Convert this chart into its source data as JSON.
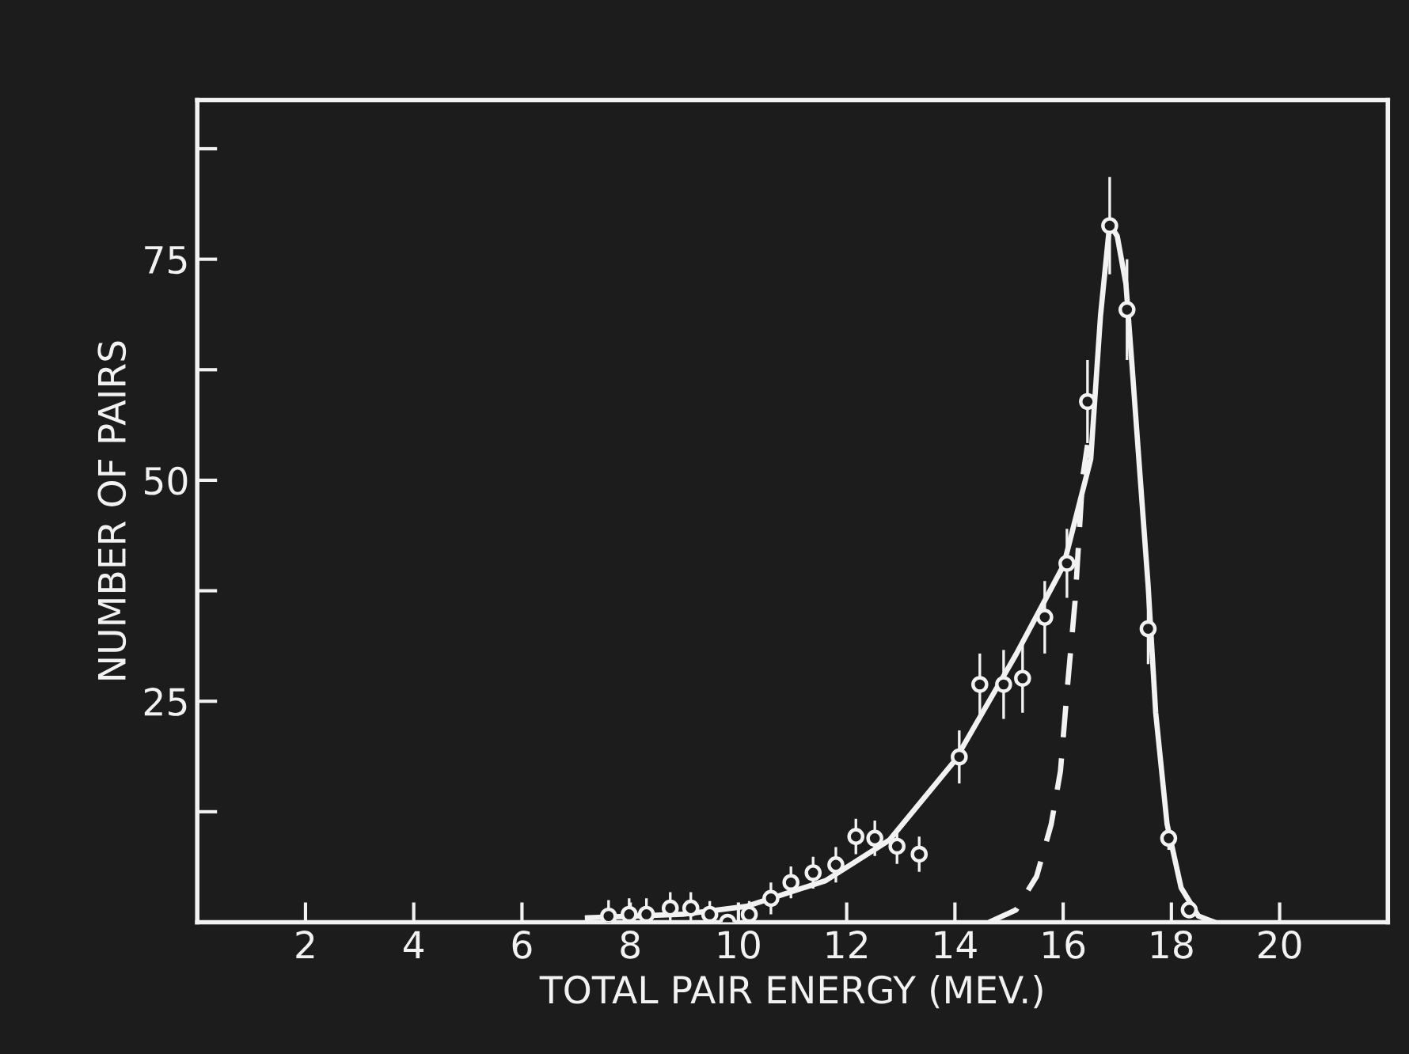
{
  "chart_data": {
    "type": "scatter",
    "xlabel": "TOTAL PAIR ENERGY (MEV.)",
    "ylabel": "NUMBER OF PAIRS",
    "xlim": [
      0,
      22
    ],
    "ylim": [
      0,
      93
    ],
    "xticks": [
      2,
      4,
      6,
      8,
      10,
      12,
      14,
      16,
      18,
      20
    ],
    "yticks": [
      {
        "value": 12.5,
        "label": null
      },
      25,
      {
        "value": 37.5,
        "label": null
      },
      50,
      {
        "value": 62.5,
        "label": null
      },
      75,
      {
        "value": 87.5,
        "label": null
      }
    ],
    "grid": false,
    "legend": false,
    "series": [
      {
        "marker": "circle",
        "color": "#f2f2f2",
        "x": [
          7.6,
          7.98,
          8.3,
          8.74,
          9.12,
          9.47,
          9.8,
          10.2,
          10.6,
          10.97,
          11.38,
          11.8,
          12.17,
          12.52,
          12.93,
          13.34,
          14.08,
          14.46,
          14.9,
          15.25,
          15.66,
          16.07,
          16.45,
          16.86,
          17.18,
          17.57,
          17.95,
          18.33
        ],
        "values": [
          0.7,
          0.9,
          0.9,
          1.6,
          1.6,
          0.9,
          0,
          0.9,
          2.7,
          4.5,
          5.6,
          6.5,
          9.7,
          9.5,
          8.6,
          7.7,
          18.7,
          26.9,
          26.9,
          27.6,
          34.5,
          40.6,
          58.9,
          78.8,
          69.3,
          33.2,
          9.5,
          1.4
        ],
        "errors": [
          1.8,
          1.8,
          1.8,
          1.8,
          1.8,
          1.5,
          null,
          1.5,
          1.8,
          1.8,
          1.8,
          2,
          2,
          2,
          2,
          2,
          3,
          3.5,
          3.9,
          3.9,
          4.1,
          3.9,
          4.7,
          5.5,
          5.7,
          4,
          1.3,
          null
        ]
      },
      {
        "type": "line",
        "line_style": "solid",
        "color": "#f2f2f2",
        "x": [
          7.21,
          8.97,
          10.15,
          11.61,
          12.79,
          14.0,
          15.13,
          16.01,
          16.51,
          16.69,
          16.86,
          17.0,
          17.16,
          17.27,
          17.42,
          17.57,
          17.71,
          17.92,
          18.18,
          18.5,
          18.8
        ],
        "values": [
          0.5,
          0.9,
          1.8,
          4.7,
          9.3,
          18.3,
          30.3,
          40.4,
          52.4,
          68.6,
          79,
          77.6,
          72.2,
          63.2,
          50.6,
          38.1,
          23.7,
          11.1,
          3.9,
          0.7,
          0
        ]
      },
      {
        "type": "line",
        "line_style": "dashed",
        "color": "#f2f2f2",
        "x": [
          14.63,
          15.13,
          15.51,
          15.78,
          15.95,
          16.07,
          16.22,
          16.36,
          16.45
        ],
        "values": [
          0,
          1.4,
          5.2,
          11.1,
          17.1,
          26,
          36.3,
          50.3,
          54
        ]
      }
    ]
  }
}
